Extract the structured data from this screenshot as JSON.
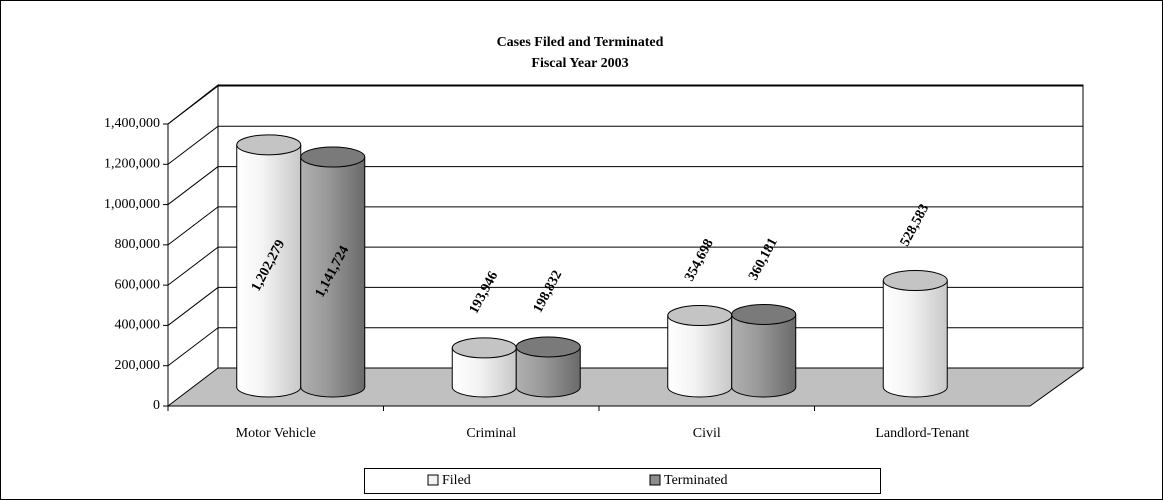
{
  "chart_data": {
    "type": "bar3d",
    "title": "Cases Filed and Terminated",
    "subtitle": "Fiscal Year 2003",
    "categories": [
      "Motor Vehicle",
      "Criminal",
      "Civil",
      "Landlord-Tenant"
    ],
    "series": [
      {
        "name": "Filed",
        "color": "#f2f2f2",
        "values": [
          1202279,
          193946,
          354698,
          528583
        ],
        "value_labels": [
          "1,202,279",
          "193,946",
          "354,698",
          "528,583"
        ]
      },
      {
        "name": "Terminated",
        "color": "#8c8c8c",
        "values": [
          1141724,
          198832,
          360181,
          null
        ],
        "value_labels": [
          "1,141,724",
          "198,832",
          "360,181",
          null
        ]
      }
    ],
    "ylim": [
      0,
      1400000
    ],
    "yticks": [
      0,
      {
        "value": 200000,
        "label": "200,000"
      },
      {
        "value": 400000,
        "label": "400,000"
      },
      {
        "value": 600000,
        "label": "600,000"
      },
      {
        "value": 800000,
        "label": "800,000"
      },
      {
        "value": 1000000,
        "label": "1,000,000"
      },
      {
        "value": 1200000,
        "label": "1,200,000"
      },
      {
        "value": 1400000,
        "label": "1,400,000"
      }
    ],
    "grid": true,
    "legend": "bottom"
  }
}
